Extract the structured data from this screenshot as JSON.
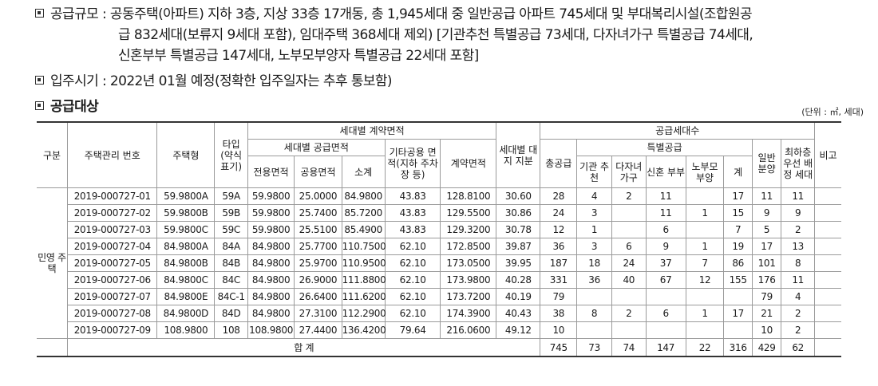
{
  "intro": {
    "scale_label": "공급규모 :",
    "scale_line1": "공동주택(아파트) 지하 3층, 지상 33층 17개동, 총 1,945세대 중 일반공급 아파트 745세대 및 부대복리시설(조합원공",
    "scale_line2": "급 832세대(보류지 9세대 포함), 임대주택 368세대 제외) [기관추천 특별공급 73세대, 다자녀가구 특별공급 74세대,",
    "scale_line3": "신혼부부 특별공급 147세대, 노부모부양자 특별공급 22세대 포함]",
    "movein_label": "입주시기 :",
    "movein_text": "2022년 01월 예정(정확한 입주일자는 추후 통보함)",
    "target_label": "공급대상",
    "unit_note": "(단위 : ㎡, 세대)"
  },
  "headers": {
    "division": "구분",
    "mgmt_no": "주택관리 번호",
    "type": "주택형",
    "type_short": "타입 (약식 표기)",
    "contract_area_group": "세대별 계약면적",
    "supply_area_group": "세대별 공급면적",
    "exclusive": "전용면적",
    "common": "공용면적",
    "subtotal": "소계",
    "other_common": "기타공용 면적(지하 주차장 등)",
    "contract_area": "계약면적",
    "land_share": "세대별 대지 지분",
    "supply_units_group": "공급세대수",
    "total_supply": "총공급",
    "special_group": "특별공급",
    "inst": "기관 추천",
    "multi_child": "다자녀 가구",
    "newlywed": "신혼 부부",
    "elderly": "노부모 부양",
    "special_sum": "계",
    "general": "일반 분양",
    "lowest_floor": "최하층 우선 배정 세대",
    "remarks": "비고"
  },
  "division_label": "민영 주택",
  "rows": [
    {
      "no": "2019-000727-01",
      "type": "59.9800A",
      "short": "59A",
      "excl": "59.9800",
      "comm": "25.0000",
      "sub": "84.9800",
      "other": "43.83",
      "contract": "128.8100",
      "land": "30.60",
      "total": "28",
      "inst": "4",
      "multi": "2",
      "newly": "11",
      "elder": "",
      "sp": "17",
      "gen": "11",
      "low": "11"
    },
    {
      "no": "2019-000727-02",
      "type": "59.9800B",
      "short": "59B",
      "excl": "59.9800",
      "comm": "25.7400",
      "sub": "85.7200",
      "other": "43.83",
      "contract": "129.5500",
      "land": "30.86",
      "total": "24",
      "inst": "3",
      "multi": "",
      "newly": "11",
      "elder": "1",
      "sp": "15",
      "gen": "9",
      "low": "9"
    },
    {
      "no": "2019-000727-03",
      "type": "59.9800C",
      "short": "59C",
      "excl": "59.9800",
      "comm": "25.5100",
      "sub": "85.4900",
      "other": "43.83",
      "contract": "129.3200",
      "land": "30.78",
      "total": "12",
      "inst": "1",
      "multi": "",
      "newly": "6",
      "elder": "",
      "sp": "7",
      "gen": "5",
      "low": "2"
    },
    {
      "no": "2019-000727-04",
      "type": "84.9800A",
      "short": "84A",
      "excl": "84.9800",
      "comm": "25.7700",
      "sub": "110.7500",
      "other": "62.10",
      "contract": "172.8500",
      "land": "39.87",
      "total": "36",
      "inst": "3",
      "multi": "6",
      "newly": "9",
      "elder": "1",
      "sp": "19",
      "gen": "17",
      "low": "13"
    },
    {
      "no": "2019-000727-05",
      "type": "84.9800B",
      "short": "84B",
      "excl": "84.9800",
      "comm": "25.9700",
      "sub": "110.9500",
      "other": "62.10",
      "contract": "173.0500",
      "land": "39.95",
      "total": "187",
      "inst": "18",
      "multi": "24",
      "newly": "37",
      "elder": "7",
      "sp": "86",
      "gen": "101",
      "low": "8"
    },
    {
      "no": "2019-000727-06",
      "type": "84.9800C",
      "short": "84C",
      "excl": "84.9800",
      "comm": "26.9000",
      "sub": "111.8800",
      "other": "62.10",
      "contract": "173.9800",
      "land": "40.28",
      "total": "331",
      "inst": "36",
      "multi": "40",
      "newly": "67",
      "elder": "12",
      "sp": "155",
      "gen": "176",
      "low": "11"
    },
    {
      "no": "2019-000727-07",
      "type": "84.9800E",
      "short": "84C-1",
      "excl": "84.9800",
      "comm": "26.6400",
      "sub": "111.6200",
      "other": "62.10",
      "contract": "173.7200",
      "land": "40.19",
      "total": "79",
      "inst": "",
      "multi": "",
      "newly": "",
      "elder": "",
      "sp": "",
      "gen": "79",
      "low": "4"
    },
    {
      "no": "2019-000727-08",
      "type": "84.9800D",
      "short": "84D",
      "excl": "84.9800",
      "comm": "27.3100",
      "sub": "112.2900",
      "other": "62.10",
      "contract": "174.3900",
      "land": "40.43",
      "total": "38",
      "inst": "8",
      "multi": "2",
      "newly": "6",
      "elder": "1",
      "sp": "17",
      "gen": "21",
      "low": "2"
    },
    {
      "no": "2019-000727-09",
      "type": "108.9800",
      "short": "108",
      "excl": "108.9800",
      "comm": "27.4400",
      "sub": "136.4200",
      "other": "79.64",
      "contract": "216.0600",
      "land": "49.12",
      "total": "10",
      "inst": "",
      "multi": "",
      "newly": "",
      "elder": "",
      "sp": "",
      "gen": "10",
      "low": "2"
    }
  ],
  "totals": {
    "label": "합 계",
    "total": "745",
    "inst": "73",
    "multi": "74",
    "newly": "147",
    "elder": "22",
    "sp": "316",
    "gen": "429",
    "low": "62"
  }
}
